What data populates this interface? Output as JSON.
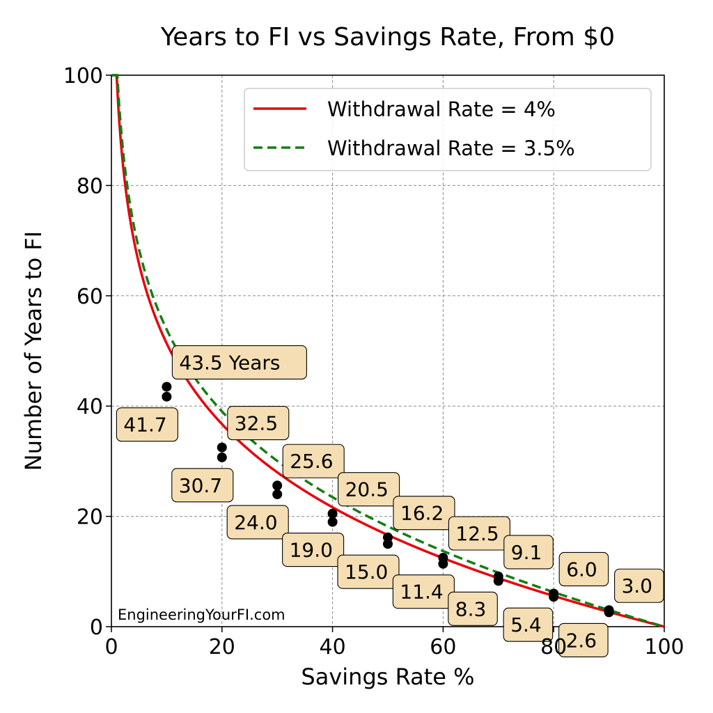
{
  "chart_data": {
    "type": "line",
    "title": "Years to FI vs Savings Rate, From $0",
    "xlabel": "Savings Rate %",
    "ylabel": "Number of Years to FI",
    "xlim": [
      0,
      100
    ],
    "ylim": [
      0,
      100
    ],
    "x_ticks": [
      "0",
      "20",
      "40",
      "60",
      "80",
      "100"
    ],
    "y_ticks": [
      "0",
      "20",
      "40",
      "60",
      "80",
      "100"
    ],
    "grid": true,
    "legend_position": "top-right",
    "watermark": "EngineeringYourFI.com",
    "series": [
      {
        "name": "Withdrawal Rate = 4%",
        "color": "#e8000b",
        "style": "solid",
        "withdrawal_rate": 0.04,
        "points": [
          {
            "x": 10,
            "y": 41.7,
            "label": "41.7"
          },
          {
            "x": 20,
            "y": 30.7,
            "label": "30.7"
          },
          {
            "x": 30,
            "y": 24.0,
            "label": "24.0"
          },
          {
            "x": 40,
            "y": 19.0,
            "label": "19.0"
          },
          {
            "x": 50,
            "y": 15.0,
            "label": "15.0"
          },
          {
            "x": 60,
            "y": 11.4,
            "label": "11.4"
          },
          {
            "x": 70,
            "y": 8.3,
            "label": "8.3"
          },
          {
            "x": 80,
            "y": 5.4,
            "label": "5.4"
          },
          {
            "x": 90,
            "y": 2.6,
            "label": "2.6"
          }
        ]
      },
      {
        "name": "Withdrawal Rate = 3.5%",
        "color": "#137e13",
        "style": "dashed",
        "withdrawal_rate": 0.035,
        "points": [
          {
            "x": 10,
            "y": 43.5,
            "label": "43.5 Years"
          },
          {
            "x": 20,
            "y": 32.5,
            "label": "32.5"
          },
          {
            "x": 30,
            "y": 25.6,
            "label": "25.6"
          },
          {
            "x": 40,
            "y": 20.5,
            "label": "20.5"
          },
          {
            "x": 50,
            "y": 16.2,
            "label": "16.2"
          },
          {
            "x": 60,
            "y": 12.5,
            "label": "12.5"
          },
          {
            "x": 70,
            "y": 9.1,
            "label": "9.1"
          },
          {
            "x": 80,
            "y": 6.0,
            "label": "6.0"
          },
          {
            "x": 90,
            "y": 3.0,
            "label": "3.0"
          }
        ]
      }
    ]
  }
}
